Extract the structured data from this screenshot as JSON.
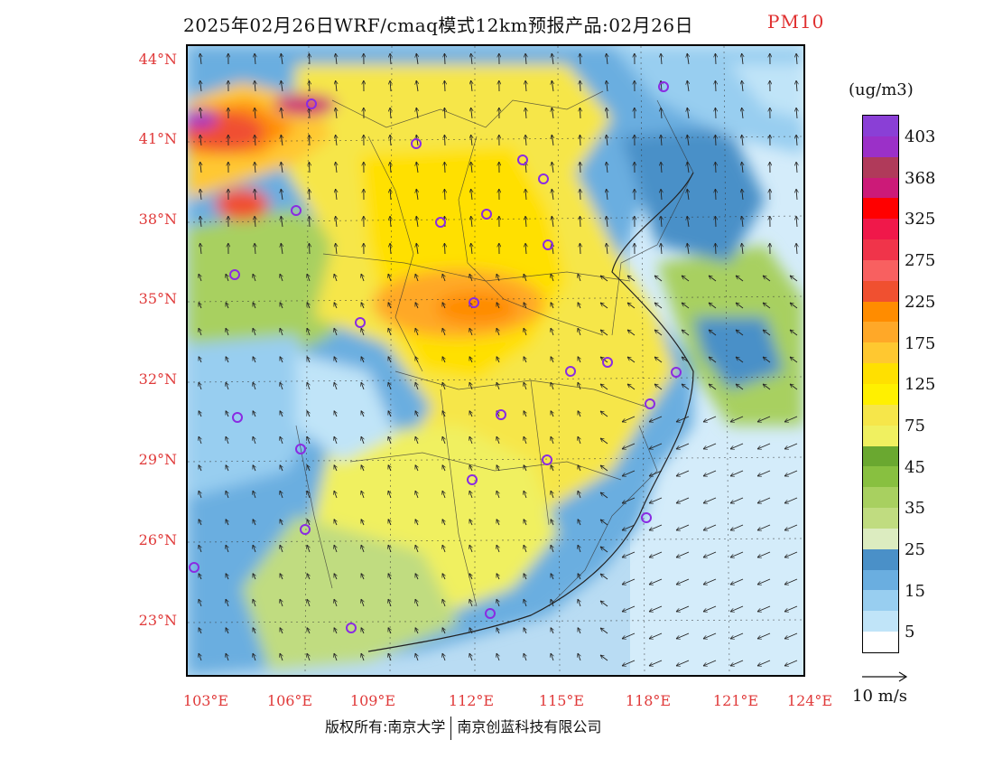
{
  "title": "2025年02月26日WRF/cmaq模式12km预报产品:02月26日",
  "variable": "PM10",
  "copyright": {
    "left": "版权所有:南京大学",
    "right": "南京创蓝科技有限公司"
  },
  "lat_labels": [
    "44°N",
    "41°N",
    "38°N",
    "35°N",
    "32°N",
    "29°N",
    "26°N",
    "23°N"
  ],
  "lon_labels": [
    "103°E",
    "106°E",
    "109°E",
    "112°E",
    "115°E",
    "118°E",
    "121°E",
    "124°E"
  ],
  "legend": {
    "unit": "(ug/m3)",
    "labels": [
      "403",
      "368",
      "325",
      "275",
      "225",
      "175",
      "125",
      "75",
      "45",
      "35",
      "25",
      "15",
      "5"
    ],
    "colors": [
      "#8a3fd6",
      "#9b30c8",
      "#b03a5a",
      "#cc1a78",
      "#ff0000",
      "#f0184a",
      "#f0344a",
      "#f86060",
      "#f05030",
      "#ff8c00",
      "#ffa828",
      "#ffc830",
      "#ffe000",
      "#fff000",
      "#f6e64a",
      "#f0f060",
      "#6aa830",
      "#88c040",
      "#a8d060",
      "#c0dc80",
      "#dcecc0",
      "#4a90c8",
      "#6aaee0",
      "#98cef0",
      "#c0e4f8",
      "#ffffff"
    ]
  },
  "wind_reference": "10 m/s",
  "colors": {
    "label_red": "#e03a3a",
    "station_marker": "#8a2be2"
  }
}
